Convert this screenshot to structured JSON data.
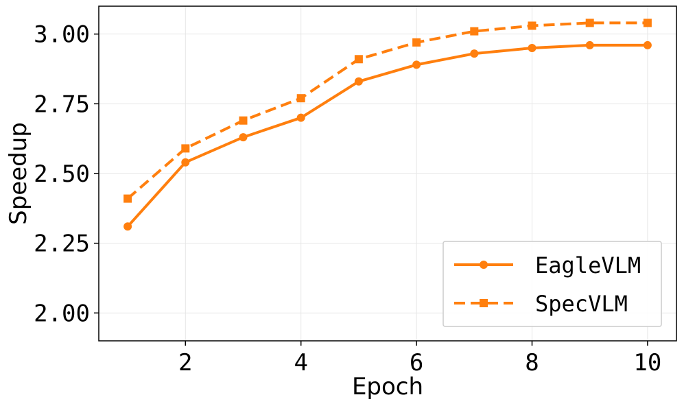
{
  "chart_data": {
    "type": "line",
    "xlabel": "Epoch",
    "ylabel": "Speedup",
    "xlim": [
      0.5,
      10.5
    ],
    "ylim": [
      1.9,
      3.1
    ],
    "x_ticks": [
      2,
      4,
      6,
      8,
      10
    ],
    "y_ticks": [
      2.0,
      2.25,
      2.5,
      2.75,
      3.0
    ],
    "x_tick_labels": [
      "2",
      "4",
      "6",
      "8",
      "10"
    ],
    "y_tick_labels": [
      "2.00",
      "2.25",
      "2.50",
      "2.75",
      "3.00"
    ],
    "grid": true,
    "legend_position": "bottom-right",
    "x": [
      1,
      2,
      3,
      4,
      5,
      6,
      7,
      8,
      9,
      10
    ],
    "series": [
      {
        "name": "EagleVLM",
        "values": [
          2.31,
          2.54,
          2.63,
          2.7,
          2.83,
          2.89,
          2.93,
          2.95,
          2.96,
          2.96
        ],
        "color": "#ff7f0e",
        "line_style": "solid",
        "marker": "circle"
      },
      {
        "name": "SpecVLM",
        "values": [
          2.41,
          2.59,
          2.69,
          2.77,
          2.91,
          2.97,
          3.01,
          3.03,
          3.04,
          3.04
        ],
        "color": "#ff7f0e",
        "line_style": "dashed",
        "marker": "square"
      }
    ]
  }
}
